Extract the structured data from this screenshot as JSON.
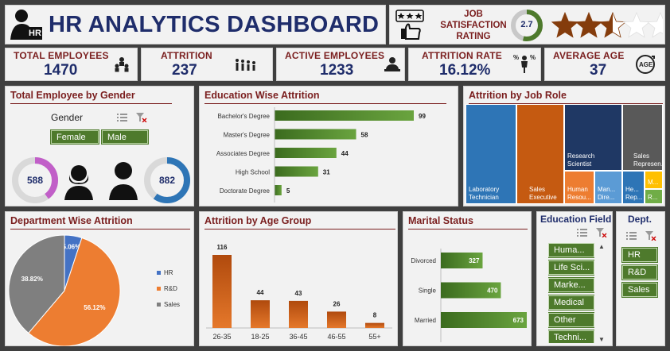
{
  "header": {
    "title": "HR ANALYTICS DASHBOARD",
    "icon_text": "HR"
  },
  "satisfaction": {
    "label_line1": "JOB",
    "label_line2": "SATISFACTION",
    "label_line3": "RATING",
    "value": "2.7",
    "rating_fraction": 0.54,
    "stars": [
      1,
      1,
      0.5,
      0,
      0
    ]
  },
  "kpis": [
    {
      "label": "TOTAL EMPLOYEES",
      "value": "1470",
      "icon": "people-group-icon"
    },
    {
      "label": "ATTRITION",
      "value": "237",
      "icon": "people-walking-icon"
    },
    {
      "label": "ACTIVE EMPLOYEES",
      "value": "1233",
      "icon": "employee-desk-icon"
    },
    {
      "label": "ATTRITION RATE",
      "value": "16.12%",
      "icon": "person-percent-icon"
    },
    {
      "label": "AVERAGE AGE",
      "value": "37",
      "icon": "age-icon"
    }
  ],
  "gender": {
    "title": "Total Employee by Gender",
    "slicer_label": "Gender",
    "options": [
      "Female",
      "Male"
    ],
    "female_count": "588",
    "male_count": "882",
    "female_fraction": 0.4,
    "male_fraction": 0.6
  },
  "education_attrition": {
    "title": "Education Wise Attrition"
  },
  "job_role": {
    "title": "Attrition by Job Role",
    "tiles": [
      {
        "label": "Laboratory Technician",
        "color": "#2e75b6"
      },
      {
        "label": "Sales Executive",
        "color": "#c55a11"
      },
      {
        "label": "Research Scientist",
        "color": "#1f3864"
      },
      {
        "label": "Sales Represen...",
        "color": "#595959"
      },
      {
        "label": "Human Resou...",
        "color": "#ed7d31"
      },
      {
        "label": "Man... Dire...",
        "color": "#5b9bd5"
      },
      {
        "label": "He... Rep...",
        "color": "#2e75b6"
      },
      {
        "label": "R...",
        "color": "#70ad47"
      },
      {
        "label": "M...",
        "color": "#ffc000"
      }
    ]
  },
  "department": {
    "title": "Department Wise Attrition",
    "legend": [
      "HR",
      "R&D",
      "Sales"
    ],
    "colors": [
      "#4472c4",
      "#ed7d31",
      "#7f7f7f"
    ],
    "labels": [
      "5.06%",
      "56.12%",
      "38.82%"
    ]
  },
  "age_group": {
    "title": "Attrition by Age Group"
  },
  "marital": {
    "title": "Marital Status"
  },
  "education_field": {
    "title": "Education Field",
    "items": [
      "Huma...",
      "Life Sci...",
      "Marke...",
      "Medical",
      "Other",
      "Techni..."
    ]
  },
  "dept_slicer": {
    "title": "Dept.",
    "items": [
      "HR",
      "R&D",
      "Sales"
    ]
  },
  "chart_data": [
    {
      "type": "bar",
      "orientation": "horizontal",
      "title": "Education Wise Attrition",
      "categories": [
        "Bachelor's Degree",
        "Master's Degree",
        "Associates Degree",
        "High School",
        "Doctorate Degree"
      ],
      "values": [
        99,
        58,
        44,
        31,
        5
      ]
    },
    {
      "type": "pie",
      "title": "Department Wise Attrition",
      "categories": [
        "HR",
        "R&D",
        "Sales"
      ],
      "values": [
        5.06,
        56.12,
        38.82
      ]
    },
    {
      "type": "bar",
      "title": "Attrition by Age Group",
      "categories": [
        "26-35",
        "18-25",
        "36-45",
        "46-55",
        "55+"
      ],
      "values": [
        116,
        44,
        43,
        26,
        8
      ]
    },
    {
      "type": "bar",
      "orientation": "horizontal",
      "title": "Marital Status",
      "categories": [
        "Divorced",
        "Single",
        "Married"
      ],
      "values": [
        327,
        470,
        673
      ]
    }
  ]
}
